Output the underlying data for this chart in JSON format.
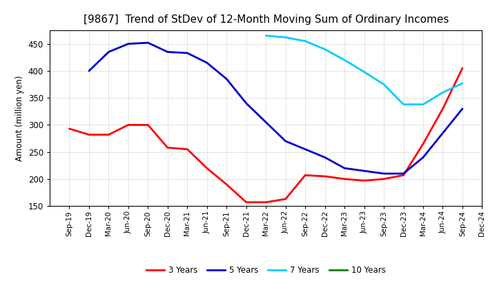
{
  "title": "[9867]  Trend of StDev of 12-Month Moving Sum of Ordinary Incomes",
  "ylabel": "Amount (million yen)",
  "ylim": [
    150,
    475
  ],
  "yticks": [
    150,
    200,
    250,
    300,
    350,
    400,
    450
  ],
  "background_color": "#ffffff",
  "grid_color": "#999999",
  "title_fontsize": 11,
  "x_labels": [
    "Sep-19",
    "Dec-19",
    "Mar-20",
    "Jun-20",
    "Sep-20",
    "Dec-20",
    "Mar-21",
    "Jun-21",
    "Sep-21",
    "Dec-21",
    "Mar-22",
    "Jun-22",
    "Sep-22",
    "Dec-22",
    "Mar-23",
    "Jun-23",
    "Sep-23",
    "Dec-23",
    "Mar-24",
    "Jun-24",
    "Sep-24",
    "Dec-24"
  ],
  "series": {
    "3 Years": {
      "color": "#ff0000",
      "values": [
        293,
        282,
        282,
        300,
        300,
        258,
        255,
        220,
        190,
        157,
        157,
        163,
        207,
        205,
        200,
        197,
        200,
        207,
        265,
        330,
        405,
        null
      ]
    },
    "5 Years": {
      "color": "#0000cc",
      "values": [
        null,
        400,
        435,
        450,
        452,
        435,
        433,
        415,
        385,
        340,
        305,
        270,
        255,
        240,
        220,
        215,
        210,
        210,
        240,
        285,
        330,
        null
      ]
    },
    "7 Years": {
      "color": "#00ccff",
      "values": [
        null,
        null,
        null,
        null,
        null,
        null,
        null,
        null,
        null,
        null,
        465,
        462,
        455,
        440,
        420,
        398,
        375,
        338,
        338,
        360,
        377,
        null
      ]
    },
    "10 Years": {
      "color": "#008000",
      "values": [
        null,
        null,
        null,
        null,
        null,
        null,
        null,
        null,
        null,
        null,
        null,
        null,
        null,
        null,
        null,
        null,
        null,
        null,
        null,
        null,
        null,
        null
      ]
    }
  },
  "legend_order": [
    "3 Years",
    "5 Years",
    "7 Years",
    "10 Years"
  ]
}
